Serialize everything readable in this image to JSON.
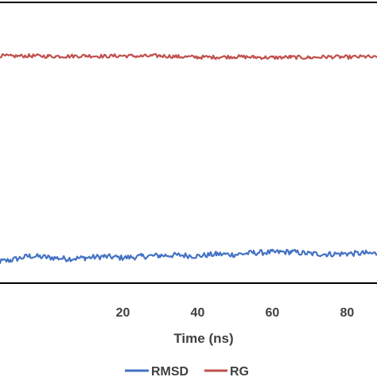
{
  "chart_data": {
    "type": "line",
    "xlabel": "Time (ns)",
    "ylabel": "",
    "xlim": [
      -15,
      88
    ],
    "ylim": [
      -4.95,
      1.15
    ],
    "x_ticks": [
      20,
      40,
      60,
      80
    ],
    "grid": false,
    "legend_position": "bottom",
    "series": [
      {
        "name": "RMSD",
        "color": "#4472c4",
        "x": [
          -15,
          -10,
          -5,
          0,
          5,
          10,
          15,
          20,
          25,
          30,
          35,
          40,
          45,
          50,
          55,
          60,
          65,
          70,
          75,
          80,
          85,
          88
        ],
        "values": [
          -4.5,
          -4.45,
          -4.36,
          -4.39,
          -4.42,
          -4.4,
          -4.37,
          -4.4,
          -4.37,
          -4.35,
          -4.34,
          -4.36,
          -4.32,
          -4.33,
          -4.29,
          -4.28,
          -4.27,
          -4.31,
          -4.32,
          -4.31,
          -4.3,
          -4.31
        ]
      },
      {
        "name": "RG",
        "color": "#c0504d",
        "x": [
          -15,
          -10,
          -5,
          0,
          5,
          10,
          15,
          20,
          25,
          30,
          35,
          40,
          45,
          50,
          55,
          60,
          65,
          70,
          75,
          80,
          85,
          88
        ],
        "values": [
          0.0,
          -0.02,
          -0.01,
          -0.02,
          -0.02,
          -0.01,
          -0.02,
          -0.01,
          -0.02,
          -0.01,
          -0.03,
          -0.04,
          -0.04,
          -0.03,
          -0.04,
          -0.05,
          -0.04,
          -0.05,
          -0.03,
          -0.04,
          -0.03,
          -0.05
        ]
      }
    ]
  }
}
